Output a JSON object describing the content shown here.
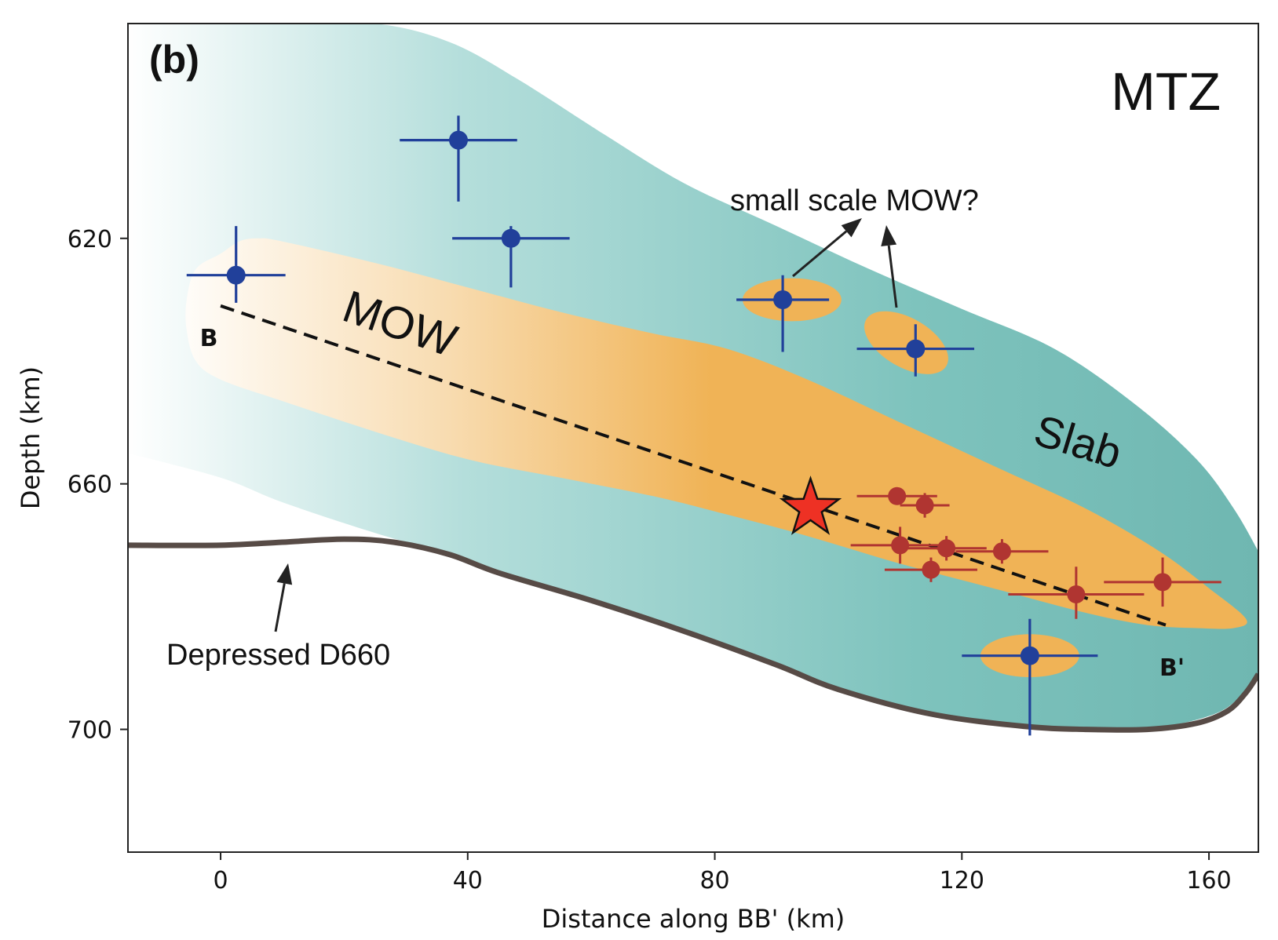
{
  "chart_data": {
    "type": "scatter",
    "panel_label": "(b)",
    "region_label": "MTZ",
    "xlabel": "Distance along BB' (km)",
    "ylabel": "Depth (km)",
    "xlim": [
      -15,
      168
    ],
    "ylim": [
      720,
      585
    ],
    "y_inverted": true,
    "xticks": [
      0,
      40,
      80,
      120,
      160
    ],
    "yticks": [
      620,
      660,
      700
    ],
    "grid": false,
    "colors": {
      "blue_points": "#21409a",
      "red_points": "#b03531",
      "slab": "#6fb7b1",
      "slab_fade": "#ffffff",
      "mow": "#f0b356",
      "d660": "#574b46",
      "star": "#ee3124"
    },
    "series": [
      {
        "marker": "blue-circle",
        "points": [
          {
            "x": 2.5,
            "y": 626,
            "xerr": 8,
            "yerr_lo": 8,
            "yerr_hi": 4.5
          },
          {
            "x": 38.5,
            "y": 604,
            "xerr": 9.5,
            "yerr_lo": 4,
            "yerr_hi": 10
          },
          {
            "x": 47,
            "y": 620,
            "xerr": 9.5,
            "yerr_lo": 2,
            "yerr_hi": 8
          },
          {
            "x": 91,
            "y": 630,
            "xerr": 7.5,
            "yerr_lo": 4,
            "yerr_hi": 8.5
          },
          {
            "x": 112.5,
            "y": 638,
            "xerr": 9.5,
            "yerr_lo": 4,
            "yerr_hi": 4.5
          },
          {
            "x": 131,
            "y": 688,
            "xerr": 11,
            "yerr_lo": 6,
            "yerr_hi": 13
          }
        ]
      },
      {
        "marker": "red-circle",
        "points": [
          {
            "x": 109.5,
            "y": 662,
            "xerr": 6.5,
            "yerr_lo": 1,
            "yerr_hi": 1
          },
          {
            "x": 114,
            "y": 663.5,
            "xerr": 4,
            "yerr_lo": 2,
            "yerr_hi": 2
          },
          {
            "x": 110,
            "y": 670,
            "xerr": 8,
            "yerr_lo": 3,
            "yerr_hi": 3
          },
          {
            "x": 117.5,
            "y": 670.5,
            "xerr": 6.5,
            "yerr_lo": 2,
            "yerr_hi": 2
          },
          {
            "x": 115,
            "y": 674,
            "xerr": 7.5,
            "yerr_lo": 2,
            "yerr_hi": 2
          },
          {
            "x": 126.5,
            "y": 671,
            "xerr": 7.5,
            "yerr_lo": 2,
            "yerr_hi": 2
          },
          {
            "x": 138.5,
            "y": 678,
            "xerr": 11,
            "yerr_lo": 4.5,
            "yerr_hi": 4
          },
          {
            "x": 152.5,
            "y": 676,
            "xerr": 9.5,
            "yerr_lo": 4,
            "yerr_hi": 4
          }
        ]
      }
    ],
    "mainshock": {
      "x": 95.5,
      "y": 664,
      "marker": "star"
    },
    "profile_line": {
      "start": [
        0,
        631
      ],
      "end": [
        153,
        683
      ],
      "style": "dashed",
      "start_label": "B",
      "end_label": "B'"
    },
    "d660": {
      "label": "Depressed D660",
      "x": [
        -15,
        0,
        10,
        20,
        28,
        37,
        45,
        60,
        75,
        90,
        100,
        115,
        130,
        140,
        150,
        158,
        163,
        166,
        168
      ],
      "y": [
        670,
        670,
        669.5,
        669,
        669.5,
        671.5,
        674.5,
        679,
        684,
        689.5,
        693.5,
        697.5,
        699.5,
        700,
        700,
        699,
        697,
        694,
        691
      ]
    },
    "slab": {
      "label": "Slab",
      "upper": {
        "x": [
          -15,
          10,
          25,
          37,
          48,
          62,
          75,
          90,
          105,
          120,
          135,
          148,
          158,
          164,
          168
        ],
        "y": [
          585,
          585,
          585,
          588,
          594,
          603,
          611,
          618,
          625,
          631.5,
          638,
          647,
          656,
          664,
          671
        ]
      },
      "lower": {
        "x": [
          168,
          162,
          150,
          140,
          130,
          115,
          100,
          90,
          75,
          60,
          45,
          37,
          25,
          10,
          0,
          -15
        ],
        "y": [
          691,
          697,
          700,
          700,
          699.5,
          697.5,
          693.5,
          689.5,
          684,
          679,
          674.5,
          671.5,
          668,
          663,
          659,
          655
        ]
      }
    },
    "mow": {
      "label": "MOW",
      "outline": {
        "x": [
          -5.5,
          -4,
          0,
          3,
          6,
          10,
          25,
          40,
          55,
          70,
          82,
          95,
          110,
          125,
          140,
          152,
          160,
          166,
          164,
          158,
          150,
          140,
          125,
          110,
          95,
          82,
          70,
          55,
          40,
          25,
          10,
          0,
          -4,
          -5.5
        ],
        "y": [
          630,
          625,
          622.5,
          620.5,
          620,
          620.5,
          624,
          628,
          632,
          635.5,
          638,
          643,
          650,
          657,
          664,
          671,
          677,
          682,
          683.5,
          683.5,
          683,
          681,
          677,
          673,
          668.5,
          665,
          662,
          659,
          656,
          651.5,
          646.5,
          643,
          640,
          635
        ]
      },
      "pockets": [
        {
          "cx": 92.5,
          "cy": 630,
          "rx": 8,
          "ry": 3.5,
          "rot": 0
        },
        {
          "cx": 111,
          "cy": 637,
          "rx": 7.5,
          "ry": 4,
          "rot": 30
        },
        {
          "cx": 131,
          "cy": 688,
          "rx": 8,
          "ry": 3.5,
          "rot": 0
        }
      ]
    },
    "annotations": {
      "question": "small scale MOW?",
      "slab_label": "Slab",
      "mow_label": "MOW",
      "d660_label": "Depressed D660"
    }
  }
}
